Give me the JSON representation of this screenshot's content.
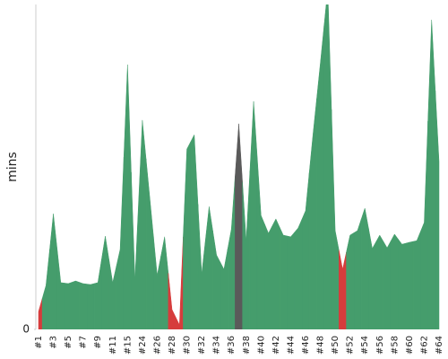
{
  "chart_data": {
    "type": "area",
    "ylabel": "mins",
    "categories": [
      "#1",
      null,
      "#3",
      null,
      "#5",
      null,
      "#7",
      null,
      "#9",
      null,
      "#11",
      null,
      "#15",
      null,
      "#24",
      null,
      "#26",
      null,
      "#28",
      null,
      "#30",
      null,
      "#32",
      null,
      "#34",
      null,
      "#36",
      null,
      "#38",
      null,
      "#40",
      null,
      "#42",
      null,
      "#44",
      null,
      "#46",
      null,
      "#48",
      null,
      "#50",
      null,
      "#52",
      null,
      "#54",
      null,
      "#56",
      null,
      "#58",
      null,
      "#60",
      null,
      "#62",
      null,
      "#64"
    ],
    "values": [
      5.5,
      13.5,
      35.6,
      14.4,
      14.1,
      14.9,
      14.1,
      13.8,
      14.4,
      28.7,
      14.4,
      24.6,
      81.5,
      15.2,
      64.4,
      40.6,
      16.6,
      28.5,
      6.1,
      1.4,
      55.5,
      59.9,
      17.1,
      37.8,
      22.9,
      18.5,
      30.9,
      63.3,
      27.3,
      70.2,
      35.1,
      29.6,
      34.0,
      29.0,
      28.5,
      31.2,
      36.5,
      59.9,
      82.0,
      105,
      30.4,
      18.5,
      29.0,
      30.4,
      37.3,
      24.9,
      29.0,
      25.1,
      29.3,
      26.2,
      26.8,
      27.3,
      32.9,
      95.3,
      51.7
    ],
    "point_colors": [
      "#d63c3c",
      "#459d6c",
      "#459d6c",
      "#459d6c",
      "#459d6c",
      "#459d6c",
      "#459d6c",
      "#459d6c",
      "#459d6c",
      "#459d6c",
      "#459d6c",
      "#459d6c",
      "#459d6c",
      "#459d6c",
      "#459d6c",
      "#459d6c",
      "#459d6c",
      "#459d6c",
      "#d63c3c",
      "#d63c3c",
      "#459d6c",
      "#459d6c",
      "#459d6c",
      "#459d6c",
      "#459d6c",
      "#459d6c",
      "#459d6c",
      "#5a5a5a",
      "#459d6c",
      "#459d6c",
      "#459d6c",
      "#459d6c",
      "#459d6c",
      "#459d6c",
      "#459d6c",
      "#459d6c",
      "#459d6c",
      "#459d6c",
      "#459d6c",
      "#459d6c",
      "#459d6c",
      "#d63c3c",
      "#459d6c",
      "#459d6c",
      "#459d6c",
      "#459d6c",
      "#459d6c",
      "#459d6c",
      "#459d6c",
      "#459d6c",
      "#459d6c",
      "#459d6c",
      "#459d6c",
      "#459d6c",
      "#459d6c"
    ],
    "ylim": [
      0,
      100
    ],
    "yticks": [
      0
    ]
  }
}
